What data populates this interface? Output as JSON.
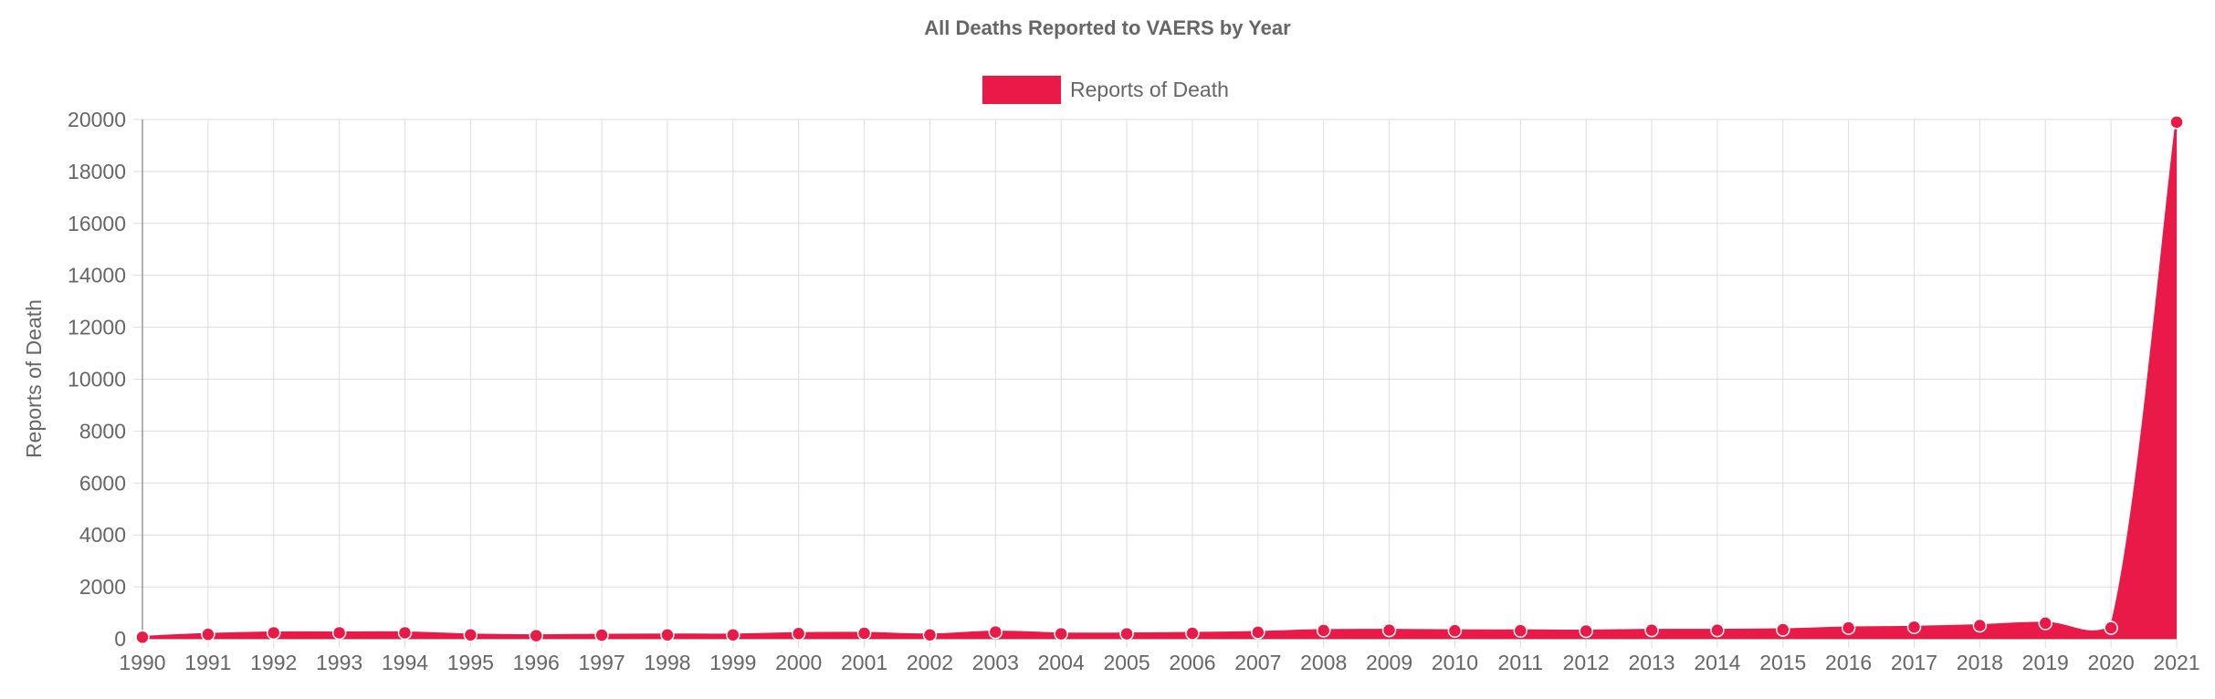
{
  "chart_data": {
    "type": "area",
    "title": "All Deaths Reported to VAERS by Year",
    "xlabel": "",
    "ylabel": "Reports of Death",
    "x": [
      "1990",
      "1991",
      "1992",
      "1993",
      "1994",
      "1995",
      "1996",
      "1997",
      "1998",
      "1999",
      "2000",
      "2001",
      "2002",
      "2003",
      "2004",
      "2005",
      "2006",
      "2007",
      "2008",
      "2009",
      "2010",
      "2011",
      "2012",
      "2013",
      "2014",
      "2015",
      "2016",
      "2017",
      "2018",
      "2019",
      "2020",
      "2021"
    ],
    "series": [
      {
        "name": "Reports of Death",
        "values": [
          60,
          170,
          230,
          230,
          230,
          150,
          120,
          140,
          150,
          150,
          200,
          210,
          150,
          260,
          190,
          190,
          210,
          250,
          320,
          330,
          310,
          310,
          300,
          330,
          330,
          350,
          420,
          450,
          510,
          600,
          420,
          19900
        ],
        "color": "#e91a47"
      }
    ],
    "ylim": [
      0,
      20000
    ],
    "yticks": [
      0,
      2000,
      4000,
      6000,
      8000,
      10000,
      12000,
      14000,
      16000,
      18000,
      20000
    ],
    "grid": true,
    "legend_position": "top-center"
  }
}
